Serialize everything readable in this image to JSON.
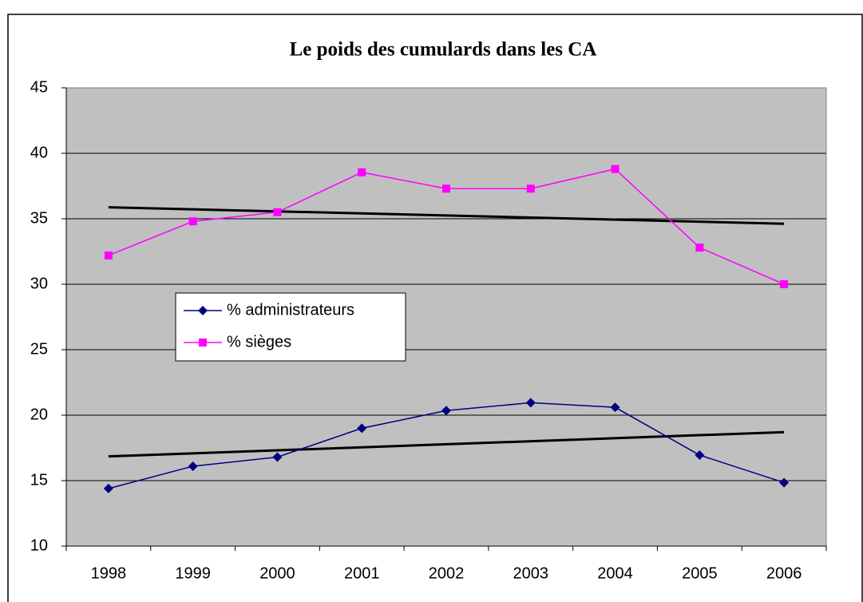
{
  "chart_data": {
    "type": "line",
    "title": "Le poids  des cumulards dans les CA",
    "categories": [
      "1998",
      "1999",
      "2000",
      "2001",
      "2002",
      "2003",
      "2004",
      "2005",
      "2006"
    ],
    "series": [
      {
        "name": "% administrateurs",
        "color": "#000080",
        "marker": "diamond",
        "trendline": "linear",
        "values": [
          14.4,
          16.1,
          16.8,
          19.0,
          20.35,
          20.95,
          20.6,
          16.95,
          14.85
        ]
      },
      {
        "name": "% sièges",
        "color": "#ff00ff",
        "marker": "square",
        "trendline": "linear",
        "values": [
          32.2,
          34.8,
          35.5,
          38.55,
          37.3,
          37.3,
          38.8,
          32.8,
          30.0
        ]
      }
    ],
    "ylim": [
      10,
      45
    ],
    "yticks": [
      10,
      15,
      20,
      25,
      30,
      35,
      40,
      45
    ],
    "grid": true,
    "legend": "left"
  }
}
